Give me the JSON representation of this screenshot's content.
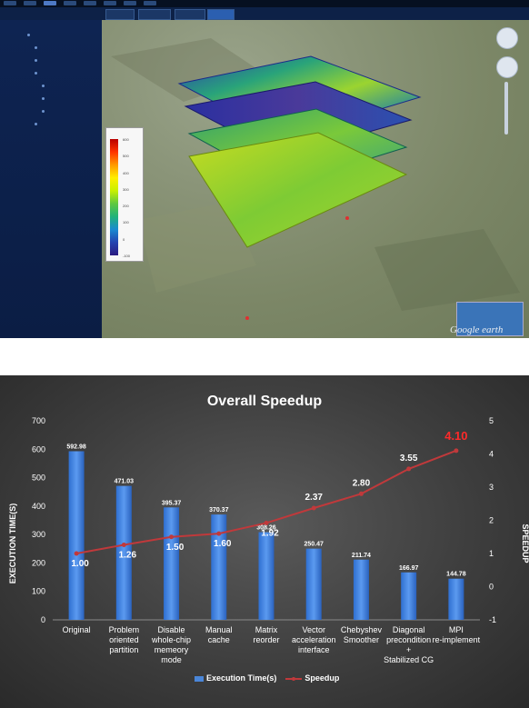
{
  "app": {
    "legend_ticks": [
      "600",
      "500",
      "400",
      "300",
      "200",
      "100",
      "0",
      "-100"
    ],
    "logo": "Google earth",
    "tabs": [
      "",
      "",
      "",
      ""
    ],
    "sidebar_items": [
      "",
      "",
      "",
      "",
      "",
      "",
      "",
      ""
    ]
  },
  "chart_data": {
    "type": "bar",
    "title": "Overall Speedup",
    "categories": [
      "Original",
      "Problem\noriented\npartition",
      "Disable\nwhole-chip\nmemeory\nmode",
      "Manual\ncache",
      "Matrix\nreorder",
      "Vector\nacceleration\ninterface",
      "Chebyshev\nSmoother",
      "Diagonal\nprecondition\n+\nStabilized CG",
      "MPI\nre-implement"
    ],
    "series": [
      {
        "name": "Execution Time(s)",
        "type": "bar",
        "axis": "left",
        "color": "#4a86d8",
        "values": [
          592.98,
          471.03,
          395.37,
          370.37,
          308.26,
          250.47,
          211.74,
          166.97,
          144.78
        ],
        "labels": [
          "592.98",
          "471.03",
          "395.37",
          "370.37",
          "308.26",
          "250.47",
          "211.74",
          "166.97",
          "144.78"
        ]
      },
      {
        "name": "Speedup",
        "type": "line",
        "axis": "right",
        "color": "#c0393b",
        "values": [
          1.0,
          1.26,
          1.5,
          1.6,
          1.92,
          2.37,
          2.8,
          3.55,
          4.1
        ],
        "labels": [
          "1.00",
          "1.26",
          "1.50",
          "1.60",
          "1.92",
          "2.37",
          "2.80",
          "3.55",
          "4.10"
        ],
        "highlight_last_color": "#ff2a2a"
      }
    ],
    "ylabel": "EXECUTION TIME(S)",
    "y2label": "SPEEDUP",
    "ylim": [
      0,
      700
    ],
    "y_ticks": [
      0,
      100,
      200,
      300,
      400,
      500,
      600,
      700
    ],
    "y2lim": [
      -1,
      5
    ],
    "y2_ticks": [
      -1,
      0,
      1,
      2,
      3,
      4,
      5
    ],
    "grid": false,
    "legend": "bottom"
  }
}
